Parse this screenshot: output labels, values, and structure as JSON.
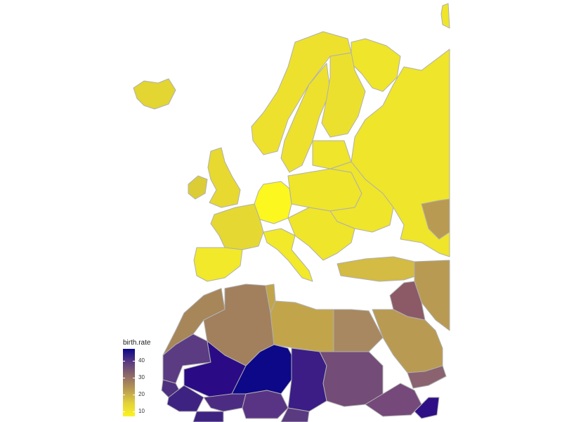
{
  "map": {
    "legend": {
      "title": "birth.rate",
      "ticks": [
        "40",
        "30",
        "20",
        "10"
      ],
      "tick_values": [
        40,
        30,
        20,
        10
      ],
      "range": [
        7,
        47
      ],
      "palette": [
        "#0d0887",
        "#5b3b82",
        "#8f6a67",
        "#b99a52",
        "#e2d13a",
        "#fcf31f"
      ]
    },
    "background_color": "#ffffff",
    "border_color": "#b0b0b0",
    "countries": [
      {
        "name": "Iceland",
        "color": "#e3d532"
      },
      {
        "name": "Norway",
        "color": "#ede12e"
      },
      {
        "name": "Sweden",
        "color": "#ede12e"
      },
      {
        "name": "Finland",
        "color": "#ece02f"
      },
      {
        "name": "Russia",
        "color": "#efe52a"
      },
      {
        "name": "United Kingdom",
        "color": "#e7d930"
      },
      {
        "name": "Ireland",
        "color": "#dccd36"
      },
      {
        "name": "Germany",
        "color": "#fbf71f"
      },
      {
        "name": "France",
        "color": "#e5d832"
      },
      {
        "name": "Spain",
        "color": "#f1e92a"
      },
      {
        "name": "Portugal",
        "color": "#f1e92a"
      },
      {
        "name": "Italy",
        "color": "#f1e92a"
      },
      {
        "name": "Poland",
        "color": "#efe52b"
      },
      {
        "name": "Ukraine",
        "color": "#efe52a"
      },
      {
        "name": "Kazakhstan",
        "color": "#b99a52"
      },
      {
        "name": "Turkey",
        "color": "#d3bb44"
      },
      {
        "name": "Morocco",
        "color": "#a7865a"
      },
      {
        "name": "Algeria",
        "color": "#a2805d"
      },
      {
        "name": "Libya",
        "color": "#c2a54b"
      },
      {
        "name": "Egypt",
        "color": "#a88860"
      },
      {
        "name": "Saudi Arabia",
        "color": "#b99a52"
      },
      {
        "name": "Iraq",
        "color": "#8c5a67"
      },
      {
        "name": "Mauritania",
        "color": "#5b3b82"
      },
      {
        "name": "Mali",
        "color": "#2a0b85"
      },
      {
        "name": "Niger",
        "color": "#0d0887"
      },
      {
        "name": "Chad",
        "color": "#3b1d85"
      },
      {
        "name": "Sudan",
        "color": "#734c77"
      },
      {
        "name": "Senegal",
        "color": "#4d3080"
      },
      {
        "name": "Guinea",
        "color": "#3e2282"
      },
      {
        "name": "Burkina Faso",
        "color": "#4c2c82"
      },
      {
        "name": "Nigeria",
        "color": "#5a3484"
      },
      {
        "name": "Cameroon",
        "color": "#5a3a80"
      },
      {
        "name": "Ethiopia",
        "color": "#75497a"
      },
      {
        "name": "Somalia",
        "color": "#2e0f86"
      },
      {
        "name": "Yemen",
        "color": "#8a6270"
      }
    ]
  }
}
